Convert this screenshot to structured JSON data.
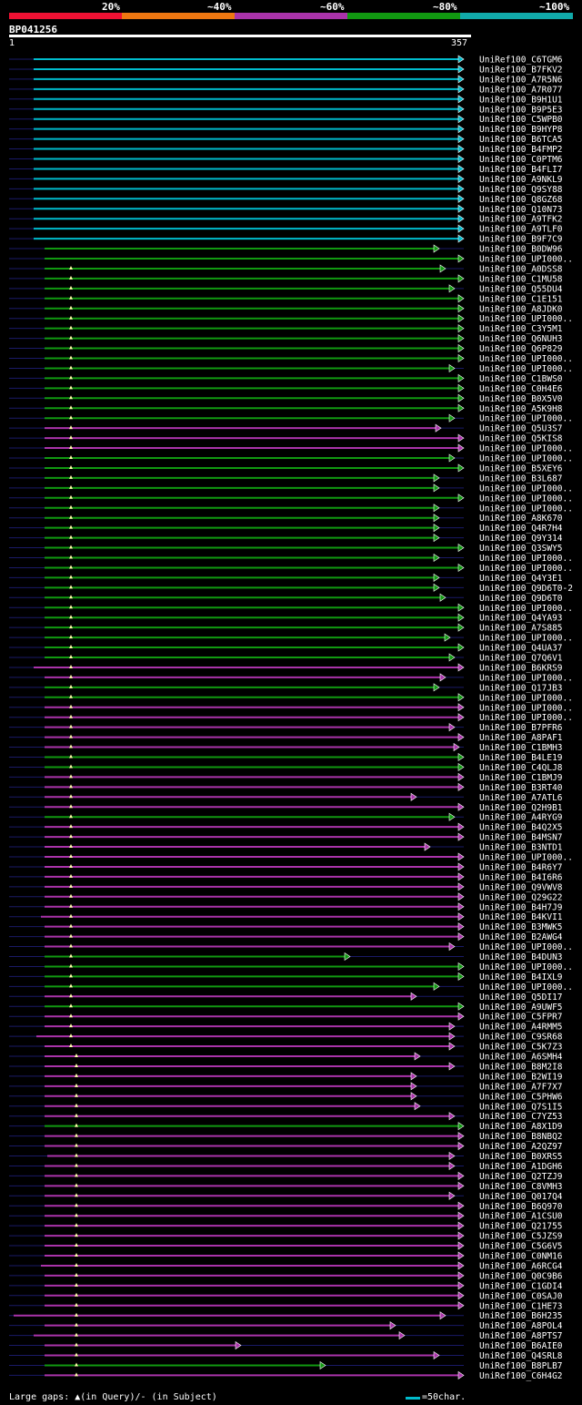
{
  "scale": {
    "labels": [
      "20%",
      "~40%",
      "~60%",
      "~80%",
      "~100%"
    ],
    "colors": [
      "#ee1133",
      "#ee7711",
      "#aa33aa",
      "#119911",
      "#11aaaa"
    ]
  },
  "query": {
    "id": "BP041256",
    "start": "1",
    "end": "357"
  },
  "hits": [
    "UniRef100_C6TGM6",
    "UniRef100_B7FKV2",
    "UniRef100_A7R5N6",
    "UniRef100_A7R077",
    "UniRef100_B9H1U1",
    "UniRef100_B9P5E3",
    "UniRef100_C5WPB0",
    "UniRef100_B9HYP8",
    "UniRef100_B6TCA5",
    "UniRef100_B4FMP2",
    "UniRef100_C0PTM6",
    "UniRef100_B4FLI7",
    "UniRef100_A9NKL9",
    "UniRef100_Q9SY88",
    "UniRef100_Q8GZ68",
    "UniRef100_Q10N73",
    "UniRef100_A9TFK2",
    "UniRef100_A9TLF0",
    "UniRef100_B9F7C9",
    "UniRef100_B0DW96",
    "UniRef100_UPI000..",
    "UniRef100_A0DSS8",
    "UniRef100_C1MU58",
    "UniRef100_Q55DU4",
    "UniRef100_C1E151",
    "UniRef100_A8JDK0",
    "UniRef100_UPI000..",
    "UniRef100_C3Y5M1",
    "UniRef100_Q6NUH3",
    "UniRef100_Q6P829",
    "UniRef100_UPI000..",
    "UniRef100_UPI000..",
    "UniRef100_C1BWS0",
    "UniRef100_C0H4E6",
    "UniRef100_B0X5V0",
    "UniRef100_A5K9H8",
    "UniRef100_UPI000..",
    "UniRef100_Q5U3S7",
    "UniRef100_Q5KIS8",
    "UniRef100_UPI000..",
    "UniRef100_UPI000..",
    "UniRef100_B5XEY6",
    "UniRef100_B3L687",
    "UniRef100_UPI000..",
    "UniRef100_UPI000..",
    "UniRef100_UPI000..",
    "UniRef100_A8K670",
    "UniRef100_Q4R7H4",
    "UniRef100_Q9Y314",
    "UniRef100_Q3SWY5",
    "UniRef100_UPI000..",
    "UniRef100_UPI000..",
    "UniRef100_Q4Y3E1",
    "UniRef100_Q9D6T0-2",
    "UniRef100_Q9D6T0",
    "UniRef100_UPI000..",
    "UniRef100_Q4YA93",
    "UniRef100_A7S885",
    "UniRef100_UPI000..",
    "UniRef100_Q4UA37",
    "UniRef100_Q7Q6V1",
    "UniRef100_B6KRS9",
    "UniRef100_UPI000..",
    "UniRef100_Q17JB3",
    "UniRef100_UPI000..",
    "UniRef100_UPI000..",
    "UniRef100_UPI000..",
    "UniRef100_B7PFR6",
    "UniRef100_A8PAF1",
    "UniRef100_C1BMH3",
    "UniRef100_B4LE19",
    "UniRef100_C4QLJ8",
    "UniRef100_C1BMJ9",
    "UniRef100_B3RT40",
    "UniRef100_A7ATL6",
    "UniRef100_Q2H9B1",
    "UniRef100_A4RYG9",
    "UniRef100_B4Q2X5",
    "UniRef100_B4MSN7",
    "UniRef100_B3NTD1",
    "UniRef100_UPI000..",
    "UniRef100_B4R6Y7",
    "UniRef100_B4I6R6",
    "UniRef100_Q9VWV8",
    "UniRef100_Q29G22",
    "UniRef100_B4H7J9",
    "UniRef100_B4KVI1",
    "UniRef100_B3MWK5",
    "UniRef100_B2AWG4",
    "UniRef100_UPI000..",
    "UniRef100_B4DUN3",
    "UniRef100_UPI000..",
    "UniRef100_B4IXL9",
    "UniRef100_UPI000..",
    "UniRef100_Q5DI17",
    "UniRef100_A9UWF5",
    "UniRef100_C5FPR7",
    "UniRef100_A4RMM5",
    "UniRef100_C9SR68",
    "UniRef100_C5K7Z3",
    "UniRef100_A6SMH4",
    "UniRef100_B8M2I8",
    "UniRef100_B2WI19",
    "UniRef100_A7F7X7",
    "UniRef100_C5PHW6",
    "UniRef100_Q7S1I5",
    "UniRef100_C7YZ53",
    "UniRef100_A8X1D9",
    "UniRef100_B8NBQ2",
    "UniRef100_A2QZ97",
    "UniRef100_B0XRS5",
    "UniRef100_A1DGH6",
    "UniRef100_Q2TZJ9",
    "UniRef100_C8VMH3",
    "UniRef100_Q017Q4",
    "UniRef100_B6Q970",
    "UniRef100_A1CSU0",
    "UniRef100_Q21755",
    "UniRef100_C5JZS9",
    "UniRef100_C5G6V5",
    "UniRef100_C0NM16",
    "UniRef100_A6RCG4",
    "UniRef100_Q0C9B6",
    "UniRef100_C1GDI4",
    "UniRef100_C0SAJ0",
    "UniRef100_C1HE73",
    "UniRef100_B6H235",
    "UniRef100_A8POL4",
    "UniRef100_A8PTS7",
    "UniRef100_B6AIE0",
    "UniRef100_Q4SRL8",
    "UniRef100_B8PLB7",
    "UniRef100_C6H4G2"
  ],
  "footer": {
    "gaps": "Large gaps: ▲(in Query)/- (in Subject)",
    "legend": "=50char."
  }
}
